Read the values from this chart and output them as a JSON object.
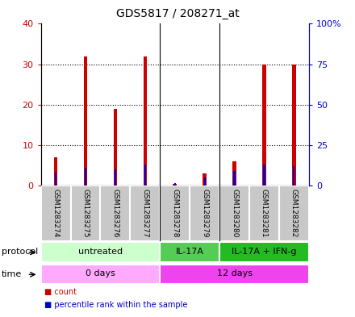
{
  "title": "GDS5817 / 208271_at",
  "samples": [
    "GSM1283274",
    "GSM1283275",
    "GSM1283276",
    "GSM1283277",
    "GSM1283278",
    "GSM1283279",
    "GSM1283280",
    "GSM1283281",
    "GSM1283282"
  ],
  "count_values": [
    7,
    32,
    19,
    32,
    0.3,
    3,
    6,
    30,
    30
  ],
  "percentile_values_right": [
    8,
    11,
    10,
    13,
    1.5,
    5,
    9,
    13,
    12
  ],
  "left_ylim": [
    0,
    40
  ],
  "right_ylim": [
    0,
    100
  ],
  "left_yticks": [
    0,
    10,
    20,
    30,
    40
  ],
  "right_yticks": [
    0,
    25,
    50,
    75,
    100
  ],
  "right_yticklabels": [
    "0",
    "25",
    "50",
    "75",
    "100%"
  ],
  "count_color": "#cc0000",
  "percentile_color": "#0000cc",
  "protocol_groups": [
    {
      "label": "untreated",
      "start": 0,
      "end": 4
    },
    {
      "label": "IL-17A",
      "start": 4,
      "end": 6
    },
    {
      "label": "IL-17A + IFN-g",
      "start": 6,
      "end": 9
    }
  ],
  "protocol_colors": [
    "#ccffcc",
    "#55cc55",
    "#22bb22"
  ],
  "time_groups": [
    {
      "label": "0 days",
      "start": 0,
      "end": 4
    },
    {
      "label": "12 days",
      "start": 4,
      "end": 9
    }
  ],
  "time_colors": [
    "#ffaaff",
    "#ee44ee"
  ],
  "sample_bg_color": "#c8c8c8",
  "bar_width": 0.12,
  "pct_bar_width": 0.12,
  "group_sep_color": "#000000",
  "dotted_grid_ticks": [
    10,
    20,
    30
  ],
  "legend_count_label": "count",
  "legend_pct_label": "percentile rank within the sample"
}
